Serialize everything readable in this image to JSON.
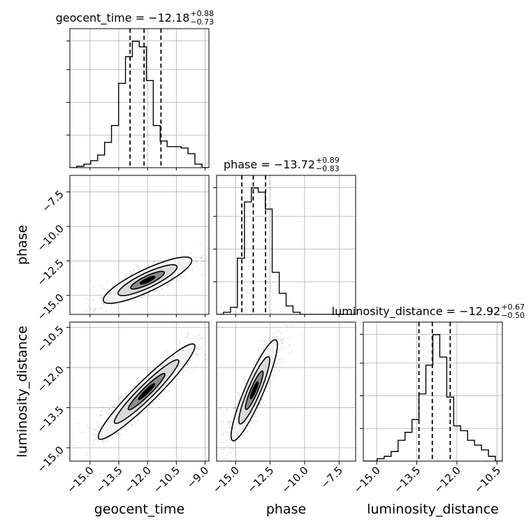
{
  "chart_data": {
    "type": "corner",
    "parameters": [
      "geocent_time",
      "phase",
      "luminosity_distance"
    ],
    "axis_labels": [
      "geocent_time",
      "phase",
      "luminosity_distance"
    ],
    "grid": true,
    "titles": [
      {
        "param": "geocent_time",
        "prefix": "geocent_time = −12.18",
        "plus": "+0.88",
        "minus": "−0.73"
      },
      {
        "param": "phase",
        "prefix": "phase = −13.72",
        "plus": "+0.89",
        "minus": "−0.83"
      },
      {
        "param": "luminosity_distance",
        "prefix": "luminosity_distance = −12.92",
        "plus": "+0.67",
        "minus": "−0.50"
      }
    ],
    "ticks": {
      "geocent_time": [
        {
          "value": -15.0,
          "label": "−15.0"
        },
        {
          "value": -13.5,
          "label": "−13.5"
        },
        {
          "value": -12.0,
          "label": "−12.0"
        },
        {
          "value": -10.5,
          "label": "−10.5"
        },
        {
          "value": -9.0,
          "label": "−9.0"
        }
      ],
      "phase": [
        {
          "value": -15.0,
          "label": "−15.0"
        },
        {
          "value": -12.5,
          "label": "−12.5"
        },
        {
          "value": -10.0,
          "label": "−10.0"
        },
        {
          "value": -7.5,
          "label": "−7.5"
        }
      ],
      "luminosity_distance": [
        {
          "value": -15.0,
          "label": "−15.0"
        },
        {
          "value": -13.5,
          "label": "−13.5"
        },
        {
          "value": -12.0,
          "label": "−12.0"
        },
        {
          "value": -10.5,
          "label": "−10.5"
        }
      ]
    },
    "ranges": {
      "geocent_time": [
        -16.05,
        -8.8
      ],
      "phase": [
        -16.38,
        -6.3
      ],
      "luminosity_distance": [
        -15.5,
        -10.3
      ]
    },
    "quantiles": {
      "geocent_time": [
        -12.91,
        -12.18,
        -11.3
      ],
      "phase": [
        -14.55,
        -13.72,
        -12.83
      ],
      "luminosity_distance": [
        -13.42,
        -12.92,
        -12.25
      ]
    },
    "histograms": {
      "geocent_time": {
        "bin_edges": [
          -16.05,
          -15.69,
          -15.32,
          -14.96,
          -14.6,
          -14.24,
          -13.88,
          -13.51,
          -13.15,
          -12.79,
          -12.43,
          -12.06,
          -11.7,
          -11.34,
          -10.98,
          -10.61,
          -10.25,
          -9.89,
          -9.53,
          -9.16,
          -8.8
        ],
        "counts": [
          0,
          2,
          5,
          10,
          18,
          36,
          60,
          120,
          158,
          180,
          172,
          124,
          60,
          38,
          30,
          30,
          28,
          20,
          5,
          0
        ]
      },
      "phase": {
        "bin_edges": [
          -16.38,
          -15.88,
          -15.37,
          -14.87,
          -14.36,
          -13.86,
          -13.36,
          -12.85,
          -12.35,
          -11.84,
          -11.34,
          -10.84,
          -10.33,
          -9.83,
          -9.32,
          -8.82,
          -8.32,
          -7.81,
          -7.31,
          -6.8,
          -6.3
        ],
        "counts": [
          0,
          3,
          10,
          80,
          160,
          180,
          174,
          150,
          60,
          30,
          12,
          3,
          0,
          0,
          0,
          0,
          0,
          0,
          0,
          0
        ]
      },
      "luminosity_distance": {
        "bin_edges": [
          -15.5,
          -15.24,
          -14.98,
          -14.72,
          -14.46,
          -14.2,
          -13.94,
          -13.68,
          -13.42,
          -13.16,
          -12.9,
          -12.64,
          -12.38,
          -12.12,
          -11.86,
          -11.6,
          -11.34,
          -11.08,
          -10.82,
          -10.56,
          -10.3
        ],
        "counts": [
          0,
          0,
          3,
          6,
          12,
          26,
          36,
          52,
          84,
          120,
          158,
          130,
          80,
          44,
          38,
          26,
          20,
          14,
          6,
          0
        ]
      }
    },
    "joint": [
      {
        "x": "geocent_time",
        "y": "phase",
        "mean": [
          -12.0,
          -13.9
        ],
        "sd": [
          1.1,
          0.8
        ],
        "corr": 0.85
      },
      {
        "x": "geocent_time",
        "y": "luminosity_distance",
        "mean": [
          -12.05,
          -12.9
        ],
        "sd": [
          1.2,
          0.85
        ],
        "corr": 0.95
      },
      {
        "x": "phase",
        "y": "luminosity_distance",
        "mean": [
          -13.65,
          -12.85
        ],
        "sd": [
          0.8,
          0.9
        ],
        "corr": 0.9
      }
    ]
  }
}
